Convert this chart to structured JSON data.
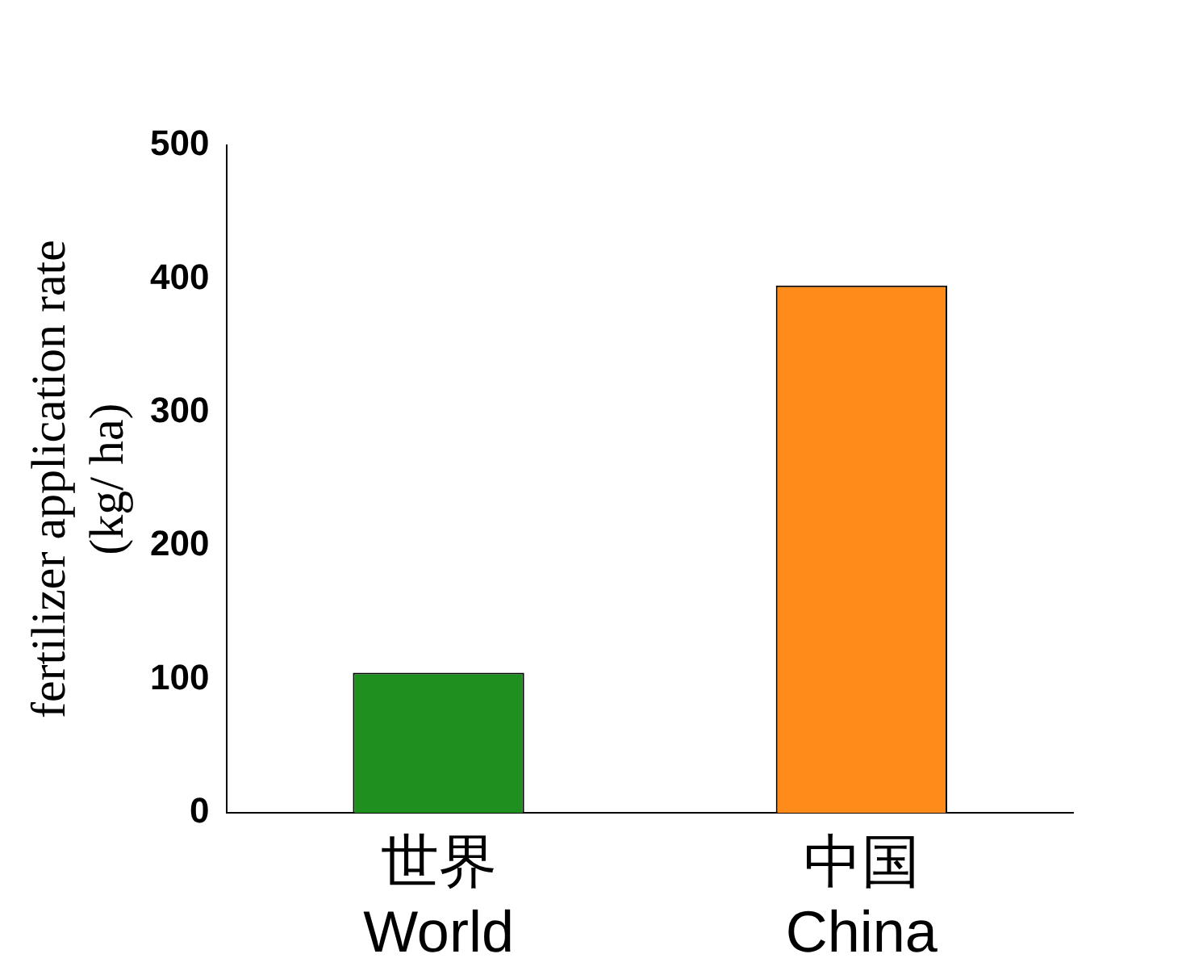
{
  "chart_data": {
    "type": "bar",
    "ylabel": "fertilizer application rate (kg/ ha)",
    "categories": [
      "世界 World",
      "中国 China"
    ],
    "values": [
      105,
      395
    ],
    "colors": [
      "#1f8f1f",
      "#ff8c1a"
    ],
    "ylim": [
      0,
      500
    ],
    "yticks": [
      0,
      100,
      200,
      300,
      400,
      500
    ],
    "grid": false
  }
}
